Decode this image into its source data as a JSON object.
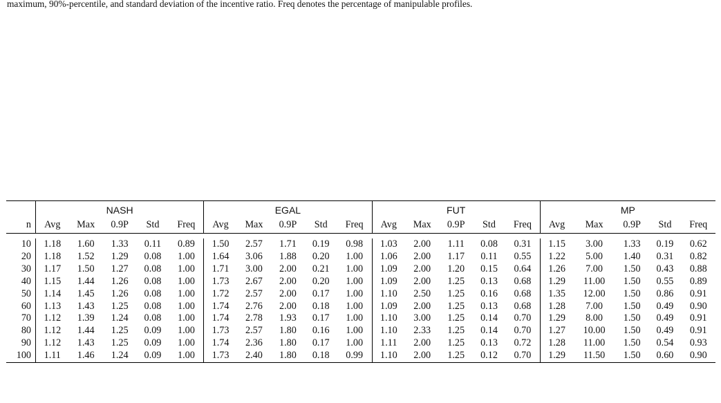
{
  "caption": {
    "line1": "",
    "line2": "maximum, 90%-percentile, and standard deviation of the incentive ratio. Freq denotes the percentage of manipulable profiles."
  },
  "table": {
    "row_header": "n",
    "groups": [
      "NASH",
      "EGAL",
      "FUT",
      "MP"
    ],
    "metrics": [
      "Avg",
      "Max",
      "0.9P",
      "Std",
      "Freq"
    ],
    "rows": [
      {
        "n": "10",
        "cells": [
          "1.18",
          "1.60",
          "1.33",
          "0.11",
          "0.89",
          "1.50",
          "2.57",
          "1.71",
          "0.19",
          "0.98",
          "1.03",
          "2.00",
          "1.11",
          "0.08",
          "0.31",
          "1.15",
          "3.00",
          "1.33",
          "0.19",
          "0.62"
        ]
      },
      {
        "n": "20",
        "cells": [
          "1.18",
          "1.52",
          "1.29",
          "0.08",
          "1.00",
          "1.64",
          "3.06",
          "1.88",
          "0.20",
          "1.00",
          "1.06",
          "2.00",
          "1.17",
          "0.11",
          "0.55",
          "1.22",
          "5.00",
          "1.40",
          "0.31",
          "0.82"
        ]
      },
      {
        "n": "30",
        "cells": [
          "1.17",
          "1.50",
          "1.27",
          "0.08",
          "1.00",
          "1.71",
          "3.00",
          "2.00",
          "0.21",
          "1.00",
          "1.09",
          "2.00",
          "1.20",
          "0.15",
          "0.64",
          "1.26",
          "7.00",
          "1.50",
          "0.43",
          "0.88"
        ]
      },
      {
        "n": "40",
        "cells": [
          "1.15",
          "1.44",
          "1.26",
          "0.08",
          "1.00",
          "1.73",
          "2.67",
          "2.00",
          "0.20",
          "1.00",
          "1.09",
          "2.00",
          "1.25",
          "0.13",
          "0.68",
          "1.29",
          "11.00",
          "1.50",
          "0.55",
          "0.89"
        ]
      },
      {
        "n": "50",
        "cells": [
          "1.14",
          "1.45",
          "1.26",
          "0.08",
          "1.00",
          "1.72",
          "2.57",
          "2.00",
          "0.17",
          "1.00",
          "1.10",
          "2.50",
          "1.25",
          "0.16",
          "0.68",
          "1.35",
          "12.00",
          "1.50",
          "0.86",
          "0.91"
        ]
      },
      {
        "n": "60",
        "cells": [
          "1.13",
          "1.43",
          "1.25",
          "0.08",
          "1.00",
          "1.74",
          "2.76",
          "2.00",
          "0.18",
          "1.00",
          "1.09",
          "2.00",
          "1.25",
          "0.13",
          "0.68",
          "1.28",
          "7.00",
          "1.50",
          "0.49",
          "0.90"
        ]
      },
      {
        "n": "70",
        "cells": [
          "1.12",
          "1.39",
          "1.24",
          "0.08",
          "1.00",
          "1.74",
          "2.78",
          "1.93",
          "0.17",
          "1.00",
          "1.10",
          "3.00",
          "1.25",
          "0.14",
          "0.70",
          "1.29",
          "8.00",
          "1.50",
          "0.49",
          "0.91"
        ]
      },
      {
        "n": "80",
        "cells": [
          "1.12",
          "1.44",
          "1.25",
          "0.09",
          "1.00",
          "1.73",
          "2.57",
          "1.80",
          "0.16",
          "1.00",
          "1.10",
          "2.33",
          "1.25",
          "0.14",
          "0.70",
          "1.27",
          "10.00",
          "1.50",
          "0.49",
          "0.91"
        ]
      },
      {
        "n": "90",
        "cells": [
          "1.12",
          "1.43",
          "1.25",
          "0.09",
          "1.00",
          "1.74",
          "2.36",
          "1.80",
          "0.17",
          "1.00",
          "1.11",
          "2.00",
          "1.25",
          "0.13",
          "0.72",
          "1.28",
          "11.00",
          "1.50",
          "0.54",
          "0.93"
        ]
      },
      {
        "n": "100",
        "cells": [
          "1.11",
          "1.46",
          "1.24",
          "0.09",
          "1.00",
          "1.73",
          "2.40",
          "1.80",
          "0.18",
          "0.99",
          "1.10",
          "2.00",
          "1.25",
          "0.12",
          "0.70",
          "1.29",
          "11.50",
          "1.50",
          "0.60",
          "0.90"
        ]
      }
    ]
  }
}
